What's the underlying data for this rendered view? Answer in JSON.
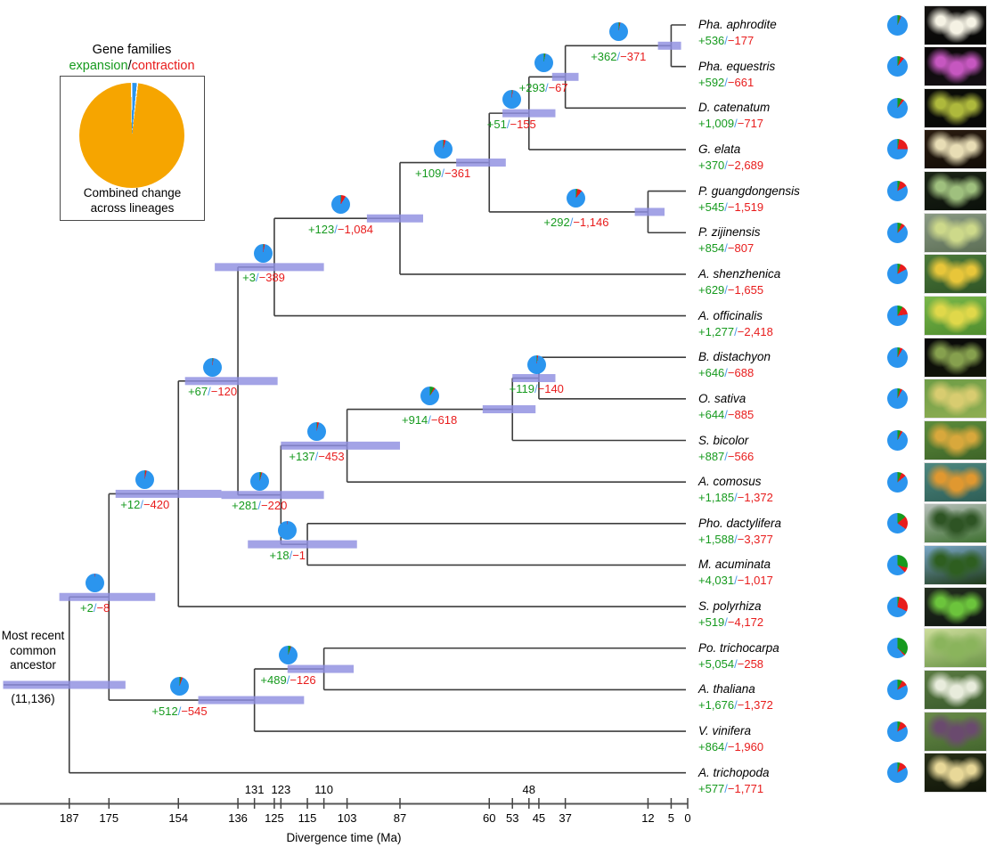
{
  "colors": {
    "branch": "#3d3d3d",
    "ci_bar": "#8f8fe0",
    "pie_blue": "#2b95ee",
    "pie_green": "#169a1e",
    "pie_red": "#e81c1c",
    "text_green": "#169a1e",
    "text_red": "#e81c1c",
    "slash_blue": "#4f9be8",
    "legend_orange": "#f6a500"
  },
  "legend": {
    "title": "Gene families",
    "expansion_label": "expansion",
    "separator": "/",
    "contraction_label": "contraction",
    "caption_line1": "Combined change",
    "caption_line2": "across lineages",
    "pie": {
      "blue_deg": 5
    }
  },
  "root": {
    "label_line1": "Most recent",
    "label_line2": "common",
    "label_line3": "ancestor",
    "gene_family_total": "(11,136)",
    "age_ma": 187,
    "ci_ma": [
      170,
      207
    ]
  },
  "axis": {
    "title": "Divergence time (Ma)",
    "bottom_ticks": [
      187,
      175,
      154,
      136,
      125,
      115,
      103,
      87,
      60,
      53,
      45,
      37,
      12,
      5,
      0
    ],
    "top_ticks": [
      131,
      123,
      110,
      48
    ]
  },
  "species": [
    {
      "name": "Pha. aphrodite",
      "expansion": "+536",
      "contraction": "−177",
      "pie": {
        "green_deg": 17,
        "red_deg": 6
      },
      "photo": {
        "c1": "#141210",
        "c2": "#050505",
        "accent": "#f5f2e4"
      }
    },
    {
      "name": "Pha. equestris",
      "expansion": "+592",
      "contraction": "−661",
      "pie": {
        "green_deg": 19,
        "red_deg": 21
      },
      "photo": {
        "c1": "#0a0708",
        "c2": "#151015",
        "accent": "#c657c0"
      }
    },
    {
      "name": "D. catenatum",
      "expansion": "+1,009",
      "contraction": "−717",
      "pie": {
        "green_deg": 26,
        "red_deg": 14
      },
      "photo": {
        "c1": "#0c0d08",
        "c2": "#070807",
        "accent": "#aeb93c"
      }
    },
    {
      "name": "G. elata",
      "expansion": "+370",
      "contraction": "−2,689",
      "pie": {
        "green_deg": 10,
        "red_deg": 80
      },
      "photo": {
        "c1": "#2a1c10",
        "c2": "#120c06",
        "accent": "#e8ddb5"
      }
    },
    {
      "name": "P. guangdongensis",
      "expansion": "+545",
      "contraction": "−1,519",
      "pie": {
        "green_deg": 16,
        "red_deg": 44
      },
      "photo": {
        "c1": "#1b2416",
        "c2": "#0b100a",
        "accent": "#9fc07e"
      }
    },
    {
      "name": "P. zijinensis",
      "expansion": "+854",
      "contraction": "−807",
      "pie": {
        "green_deg": 24,
        "red_deg": 22
      },
      "photo": {
        "c1": "#8a9a84",
        "c2": "#5c6e55",
        "accent": "#cdd98a"
      }
    },
    {
      "name": "A. shenzhenica",
      "expansion": "+629",
      "contraction": "−1,655",
      "pie": {
        "green_deg": 18,
        "red_deg": 44
      },
      "photo": {
        "c1": "#4c7a3a",
        "c2": "#2f5426",
        "accent": "#e8c63a"
      }
    },
    {
      "name": "A. officinalis",
      "expansion": "+1,277",
      "contraction": "−2,418",
      "pie": {
        "green_deg": 30,
        "red_deg": 52
      },
      "photo": {
        "c1": "#7ab84a",
        "c2": "#4e8c2e",
        "accent": "#e0d84a"
      }
    },
    {
      "name": "B. distachyon",
      "expansion": "+646",
      "contraction": "−688",
      "pie": {
        "green_deg": 15,
        "red_deg": 16
      },
      "photo": {
        "c1": "#0a0a0a",
        "c2": "#111408",
        "accent": "#86a04e"
      }
    },
    {
      "name": "O. sativa",
      "expansion": "+644",
      "contraction": "−885",
      "pie": {
        "green_deg": 16,
        "red_deg": 13
      },
      "photo": {
        "c1": "#6d9c46",
        "c2": "#8fae52",
        "accent": "#d8cc70"
      }
    },
    {
      "name": "S. bicolor",
      "expansion": "+887",
      "contraction": "−566",
      "pie": {
        "green_deg": 19,
        "red_deg": 11
      },
      "photo": {
        "c1": "#5c8c3c",
        "c2": "#3e6428",
        "accent": "#d8a83c"
      }
    },
    {
      "name": "A. comosus",
      "expansion": "+1,185",
      "contraction": "−1,372",
      "pie": {
        "green_deg": 24,
        "red_deg": 27
      },
      "photo": {
        "c1": "#4e8880",
        "c2": "#2e5e56",
        "accent": "#e09830"
      }
    },
    {
      "name": "Pho. dactylifera",
      "expansion": "+1,588",
      "contraction": "−3,377",
      "pie": {
        "green_deg": 50,
        "red_deg": 75
      },
      "photo": {
        "c1": "#b8c0bc",
        "c2": "#3e7030",
        "accent": "#2e5424"
      }
    },
    {
      "name": "M. acuminata",
      "expansion": "+4,031",
      "contraction": "−1,017",
      "pie": {
        "green_deg": 105,
        "red_deg": 30
      },
      "photo": {
        "c1": "#7aa8c8",
        "c2": "#1e3816",
        "accent": "#2e5e20"
      }
    },
    {
      "name": "S. polyrhiza",
      "expansion": "+519",
      "contraction": "−4,172",
      "pie": {
        "green_deg": 10,
        "red_deg": 105
      },
      "photo": {
        "c1": "#253020",
        "c2": "#0e1410",
        "accent": "#6cc43c"
      }
    },
    {
      "name": "Po. trichocarpa",
      "expansion": "+5,054",
      "contraction": "−258",
      "pie": {
        "green_deg": 130,
        "red_deg": 8
      },
      "photo": {
        "c1": "#cede9c",
        "c2": "#6a9446",
        "accent": "#8ab45c"
      }
    },
    {
      "name": "A. thaliana",
      "expansion": "+1,676",
      "contraction": "−1,372",
      "pie": {
        "green_deg": 28,
        "red_deg": 34
      },
      "photo": {
        "c1": "#5a7a42",
        "c2": "#3a5a2c",
        "accent": "#e8ecdc"
      }
    },
    {
      "name": "V. vinifera",
      "expansion": "+864",
      "contraction": "−1,960",
      "pie": {
        "green_deg": 18,
        "red_deg": 42
      },
      "photo": {
        "c1": "#6a8c4a",
        "c2": "#44662e",
        "accent": "#6a4a6e"
      }
    },
    {
      "name": "A. trichopoda",
      "expansion": "+577",
      "contraction": "−1,771",
      "pie": {
        "green_deg": 15,
        "red_deg": 44
      },
      "photo": {
        "c1": "#283018",
        "c2": "#101408",
        "accent": "#e8d898"
      }
    }
  ],
  "nodes": [
    {
      "id": "phal",
      "expansion": "+362",
      "contraction": "−371",
      "age_ma": 5,
      "ci_ma": [
        2,
        9
      ],
      "pie": {
        "green_deg": 6,
        "red_deg": 5
      }
    },
    {
      "id": "phalDend",
      "expansion": "+293",
      "contraction": "−67",
      "age_ma": 37,
      "ci_ma": [
        33,
        41
      ],
      "pie": {
        "green_deg": 9,
        "red_deg": 2
      }
    },
    {
      "id": "epi",
      "expansion": "+51",
      "contraction": "−155",
      "age_ma": 48,
      "ci_ma": [
        40,
        56
      ],
      "pie": {
        "green_deg": 2,
        "red_deg": 5
      }
    },
    {
      "id": "plat",
      "expansion": "+292",
      "contraction": "−1,146",
      "age_ma": 12,
      "ci_ma": [
        7,
        16
      ],
      "pie": {
        "green_deg": 9,
        "red_deg": 30
      }
    },
    {
      "id": "orchCore",
      "expansion": "+109",
      "contraction": "−361",
      "age_ma": 60,
      "ci_ma": [
        55,
        70
      ],
      "pie": {
        "green_deg": 4,
        "red_deg": 12
      }
    },
    {
      "id": "orch",
      "expansion": "+123",
      "contraction": "−1,084",
      "age_ma": 87,
      "ci_ma": [
        80,
        97
      ],
      "pie": {
        "green_deg": 4,
        "red_deg": 28
      }
    },
    {
      "id": "aspa",
      "expansion": "+3",
      "contraction": "−389",
      "age_ma": 125,
      "ci_ma": [
        110,
        143
      ],
      "pie": {
        "green_deg": 2,
        "red_deg": 8
      }
    },
    {
      "id": "bop",
      "expansion": "+119",
      "contraction": "−140",
      "age_ma": 45,
      "ci_ma": [
        40,
        53
      ],
      "pie": {
        "green_deg": 4,
        "red_deg": 5
      }
    },
    {
      "id": "grass",
      "expansion": "+914",
      "contraction": "−618",
      "age_ma": 53,
      "ci_ma": [
        46,
        62
      ],
      "pie": {
        "green_deg": 26,
        "red_deg": 10
      }
    },
    {
      "id": "poales",
      "expansion": "+137",
      "contraction": "−453",
      "age_ma": 103,
      "ci_ma": [
        87,
        123
      ],
      "pie": {
        "green_deg": 4,
        "red_deg": 10
      }
    },
    {
      "id": "palm",
      "expansion": "+18",
      "contraction": "−1",
      "age_ma": 115,
      "ci_ma": [
        100,
        133
      ],
      "pie": {
        "green_deg": 1,
        "red_deg": 1
      }
    },
    {
      "id": "comm",
      "expansion": "+281",
      "contraction": "−220",
      "age_ma": 123,
      "ci_ma": [
        110,
        141
      ],
      "pie": {
        "green_deg": 9,
        "red_deg": 7
      }
    },
    {
      "id": "mono1",
      "expansion": "+67",
      "contraction": "−120",
      "age_ma": 136,
      "ci_ma": [
        124,
        152
      ],
      "pie": {
        "green_deg": 2,
        "red_deg": 4
      }
    },
    {
      "id": "mono",
      "expansion": "+12",
      "contraction": "−420",
      "age_ma": 154,
      "ci_ma": [
        141,
        173
      ],
      "pie": {
        "green_deg": 2,
        "red_deg": 10
      }
    },
    {
      "id": "rosid",
      "expansion": "+489",
      "contraction": "−126",
      "age_ma": 110,
      "ci_ma": [
        101,
        121
      ],
      "pie": {
        "green_deg": 16,
        "red_deg": 4
      }
    },
    {
      "id": "eudi",
      "expansion": "+512",
      "contraction": "−545",
      "age_ma": 131,
      "ci_ma": [
        116,
        148
      ],
      "pie": {
        "green_deg": 10,
        "red_deg": 10
      }
    },
    {
      "id": "angio1",
      "expansion": "+2",
      "contraction": "−8",
      "age_ma": 175,
      "ci_ma": [
        161,
        190
      ],
      "pie": {
        "green_deg": 1,
        "red_deg": 1
      }
    }
  ]
}
